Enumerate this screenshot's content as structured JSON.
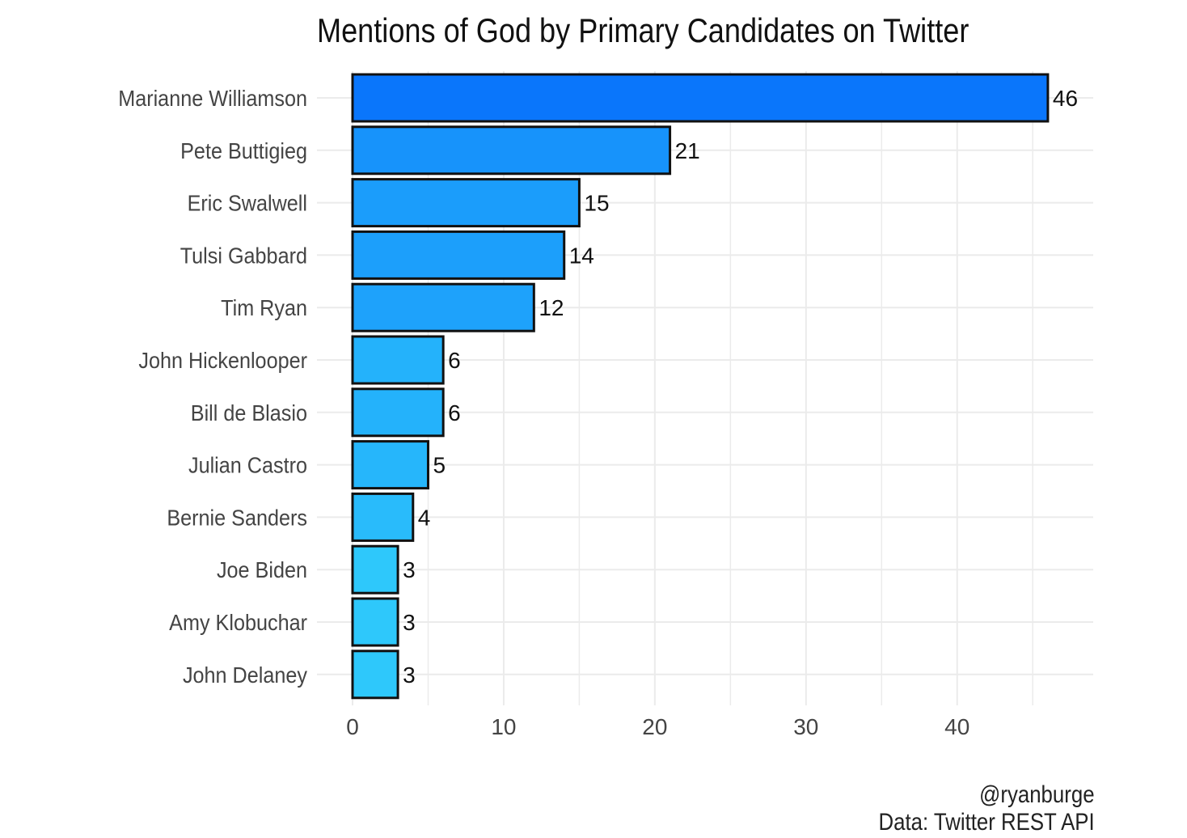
{
  "chart_data": {
    "type": "bar",
    "orientation": "horizontal",
    "title": "Mentions of God by Primary Candidates on Twitter",
    "categories": [
      "Marianne Williamson",
      "Pete Buttigieg",
      "Eric Swalwell",
      "Tulsi Gabbard",
      "Tim Ryan",
      "John Hickenlooper",
      "Bill de Blasio",
      "Julian Castro",
      "Bernie Sanders",
      "Joe Biden",
      "Amy Klobuchar",
      "John Delaney"
    ],
    "values": [
      46,
      21,
      15,
      14,
      12,
      6,
      6,
      5,
      4,
      3,
      3,
      3
    ],
    "xlabel": "",
    "ylabel": "",
    "xlim": [
      0,
      49
    ],
    "xticks": [
      0,
      10,
      20,
      30,
      40
    ],
    "grid": true,
    "data_labels": true,
    "colors": {
      "bar_high": "#0a76fb",
      "bar_low": "#2ec8fb",
      "bar_outline": "#111111",
      "grid": "#ebebeb"
    }
  },
  "caption": {
    "handle": "@ryanburge",
    "source": "Data: Twitter REST API"
  }
}
